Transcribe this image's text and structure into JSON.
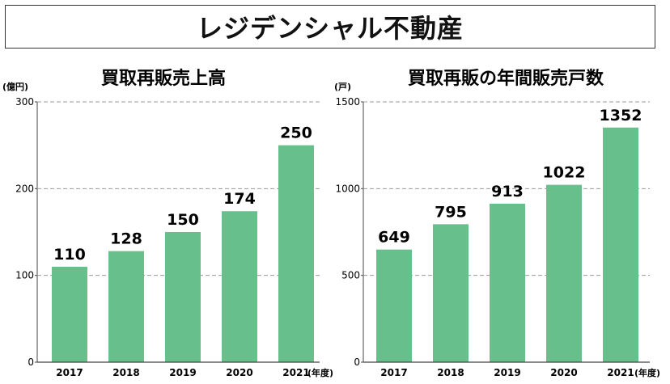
{
  "header": {
    "title": "レジデンシャル不動産"
  },
  "chart_data": [
    {
      "type": "bar",
      "title": "買取再販売上高",
      "unit": "(億円)",
      "categories": [
        "2017",
        "2018",
        "2019",
        "2020",
        "2021"
      ],
      "values": [
        110,
        128,
        150,
        174,
        250
      ],
      "ylim": [
        0,
        300
      ],
      "yticks": [
        "0",
        "100",
        "200",
        "300"
      ],
      "x_unit": "(年度)",
      "bar_color": "#67c08c",
      "grid": true
    },
    {
      "type": "bar",
      "title": "買取再販の年間販売戸数",
      "unit": "(戸)",
      "categories": [
        "2017",
        "2018",
        "2019",
        "2020",
        "2021"
      ],
      "values": [
        649,
        795,
        913,
        1022,
        1352
      ],
      "ylim": [
        0,
        1500
      ],
      "yticks": [
        "0",
        "500",
        "1000",
        "1500"
      ],
      "x_unit": "(年度)",
      "bar_color": "#67c08c",
      "grid": true
    }
  ]
}
